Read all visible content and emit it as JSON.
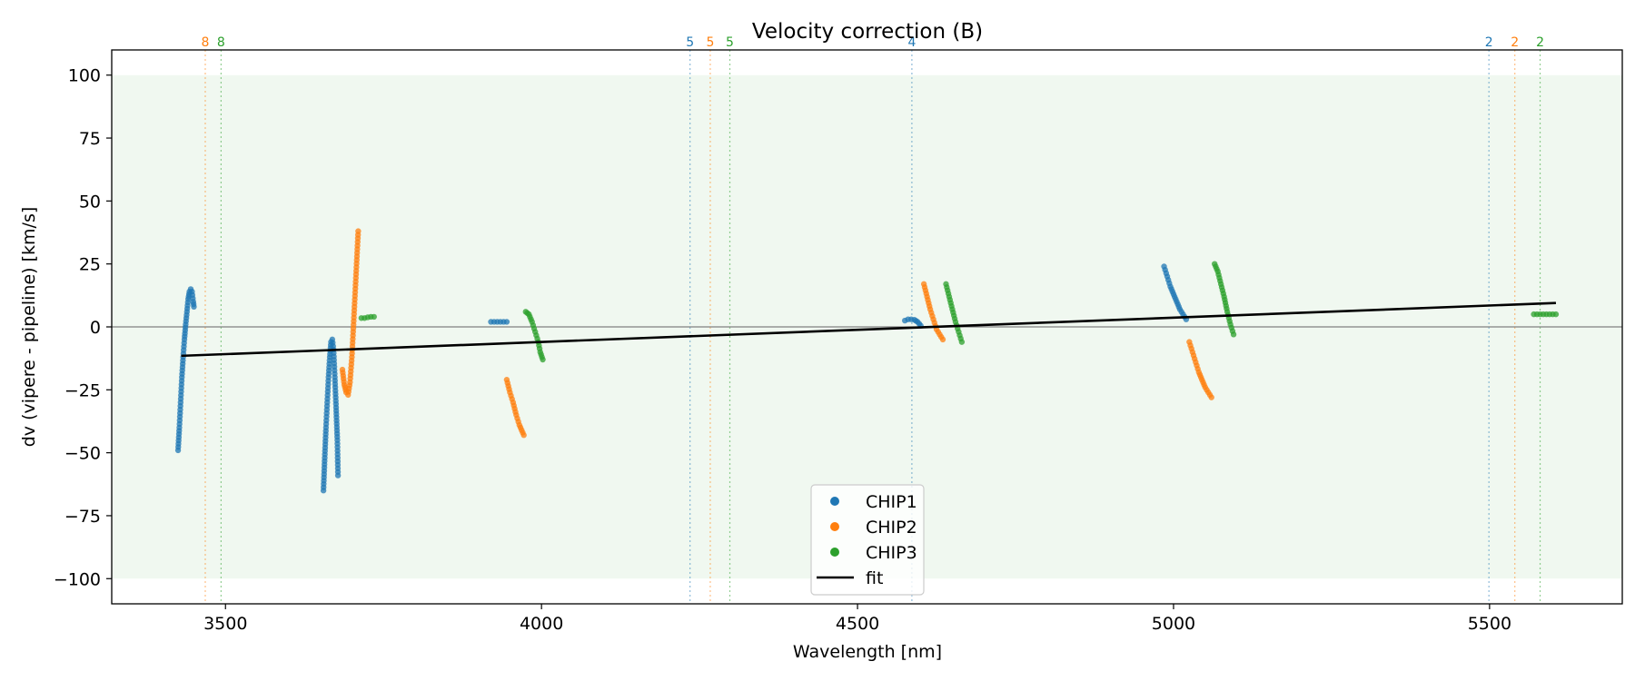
{
  "chart_data": {
    "type": "scatter",
    "title": "Velocity correction (B)",
    "xlabel": "Wavelength [nm]",
    "ylabel": "dv (vipere - pipeline) [km/s]",
    "xlim": [
      3320,
      5710
    ],
    "ylim": [
      -110,
      110
    ],
    "xticks": [
      3500,
      4000,
      4500,
      5000,
      5500
    ],
    "xtick_labels": [
      "3500",
      "4000",
      "4500",
      "5000",
      "5500"
    ],
    "yticks": [
      100,
      75,
      50,
      25,
      0,
      -25,
      -50,
      -75,
      -100
    ],
    "ytick_labels": [
      "100",
      "75",
      "50",
      "25",
      "0",
      "−25",
      "−50",
      "−75",
      "−100"
    ],
    "band": {
      "ymin": -100,
      "ymax": 100,
      "color": "#2ca02c"
    },
    "zero_line": 0,
    "legend_position": "bottom-center",
    "series": [
      {
        "name": "CHIP1",
        "color": "#1f77b4",
        "segments": [
          [
            [
              3425,
              -49
            ],
            [
              3427,
              -40
            ],
            [
              3429,
              -30
            ],
            [
              3431,
              -20
            ],
            [
              3433,
              -12
            ],
            [
              3435,
              -5
            ],
            [
              3437,
              1
            ],
            [
              3439,
              6
            ],
            [
              3441,
              11
            ],
            [
              3443,
              14
            ],
            [
              3445,
              15
            ],
            [
              3447,
              14
            ],
            [
              3449,
              10
            ],
            [
              3450,
              8
            ]
          ],
          [
            [
              3655,
              -65
            ],
            [
              3657,
              -52
            ],
            [
              3659,
              -40
            ],
            [
              3661,
              -30
            ],
            [
              3663,
              -20
            ],
            [
              3665,
              -12
            ],
            [
              3667,
              -6
            ],
            [
              3669,
              -5
            ],
            [
              3671,
              -9
            ],
            [
              3673,
              -20
            ],
            [
              3675,
              -32
            ],
            [
              3677,
              -45
            ],
            [
              3678,
              -59
            ]
          ],
          [
            [
              3920,
              2
            ],
            [
              3925,
              2
            ],
            [
              3930,
              2
            ],
            [
              3935,
              2
            ],
            [
              3940,
              2
            ],
            [
              3945,
              2
            ]
          ],
          [
            [
              4575,
              2.5
            ],
            [
              4580,
              3
            ],
            [
              4585,
              3
            ],
            [
              4590,
              2.8
            ],
            [
              4595,
              2
            ],
            [
              4600,
              0.5
            ]
          ],
          [
            [
              4985,
              24
            ],
            [
              4990,
              20
            ],
            [
              4995,
              16
            ],
            [
              5000,
              13
            ],
            [
              5005,
              10
            ],
            [
              5010,
              7
            ],
            [
              5015,
              5
            ],
            [
              5020,
              3
            ]
          ]
        ]
      },
      {
        "name": "CHIP2",
        "color": "#ff7f0e",
        "segments": [
          [
            [
              3685,
              -17
            ],
            [
              3688,
              -23
            ],
            [
              3691,
              -26
            ],
            [
              3694,
              -27
            ],
            [
              3697,
              -22
            ],
            [
              3700,
              -12
            ],
            [
              3702,
              -2
            ],
            [
              3704,
              8
            ],
            [
              3706,
              18
            ],
            [
              3708,
              28
            ],
            [
              3710,
              38
            ]
          ],
          [
            [
              3945,
              -21
            ],
            [
              3950,
              -26
            ],
            [
              3955,
              -30
            ],
            [
              3960,
              -35
            ],
            [
              3965,
              -39
            ],
            [
              3972,
              -43
            ]
          ],
          [
            [
              4605,
              17
            ],
            [
              4610,
              12
            ],
            [
              4615,
              7
            ],
            [
              4620,
              3
            ],
            [
              4625,
              -1
            ],
            [
              4630,
              -3
            ],
            [
              4635,
              -5
            ]
          ],
          [
            [
              5025,
              -6
            ],
            [
              5030,
              -10
            ],
            [
              5035,
              -14
            ],
            [
              5040,
              -18
            ],
            [
              5045,
              -21
            ],
            [
              5050,
              -24
            ],
            [
              5055,
              -26
            ],
            [
              5060,
              -28
            ]
          ]
        ]
      },
      {
        "name": "CHIP3",
        "color": "#2ca02c",
        "segments": [
          [
            [
              3715,
              3.5
            ],
            [
              3720,
              3.5
            ],
            [
              3725,
              3.8
            ],
            [
              3730,
              4
            ],
            [
              3735,
              4
            ]
          ],
          [
            [
              3975,
              6
            ],
            [
              3980,
              5
            ],
            [
              3985,
              2
            ],
            [
              3990,
              -2
            ],
            [
              3995,
              -6
            ],
            [
              3998,
              -10
            ],
            [
              4002,
              -13
            ]
          ],
          [
            [
              4640,
              17
            ],
            [
              4645,
              12
            ],
            [
              4650,
              7
            ],
            [
              4655,
              2
            ],
            [
              4660,
              -2
            ],
            [
              4665,
              -6
            ]
          ],
          [
            [
              5065,
              25
            ],
            [
              5070,
              22
            ],
            [
              5075,
              17
            ],
            [
              5080,
              12
            ],
            [
              5085,
              6
            ],
            [
              5090,
              1
            ],
            [
              5095,
              -3
            ]
          ],
          [
            [
              5570,
              5
            ],
            [
              5580,
              5
            ],
            [
              5590,
              5
            ],
            [
              5600,
              5
            ],
            [
              5605,
              5
            ]
          ]
        ]
      }
    ],
    "fit": {
      "name": "fit",
      "color": "#000000",
      "points": [
        [
          3430,
          -11.5
        ],
        [
          5605,
          9.5
        ]
      ]
    },
    "order_markers": [
      {
        "x": 4235,
        "label": "5",
        "color": "#1f77b4"
      },
      {
        "x": 4586,
        "label": "4",
        "color": "#1f77b4"
      },
      {
        "x": 5499,
        "label": "2",
        "color": "#1f77b4"
      },
      {
        "x": 3468,
        "label": "8",
        "color": "#ff7f0e"
      },
      {
        "x": 4267,
        "label": "5",
        "color": "#ff7f0e"
      },
      {
        "x": 5540,
        "label": "2",
        "color": "#ff7f0e"
      },
      {
        "x": 3493,
        "label": "8",
        "color": "#2ca02c"
      },
      {
        "x": 4298,
        "label": "5",
        "color": "#2ca02c"
      },
      {
        "x": 5580,
        "label": "2",
        "color": "#2ca02c"
      }
    ],
    "legend": [
      {
        "label": "CHIP1",
        "kind": "marker",
        "color": "#1f77b4"
      },
      {
        "label": "CHIP2",
        "kind": "marker",
        "color": "#ff7f0e"
      },
      {
        "label": "CHIP3",
        "kind": "marker",
        "color": "#2ca02c"
      },
      {
        "label": "fit",
        "kind": "line",
        "color": "#000000"
      }
    ]
  }
}
